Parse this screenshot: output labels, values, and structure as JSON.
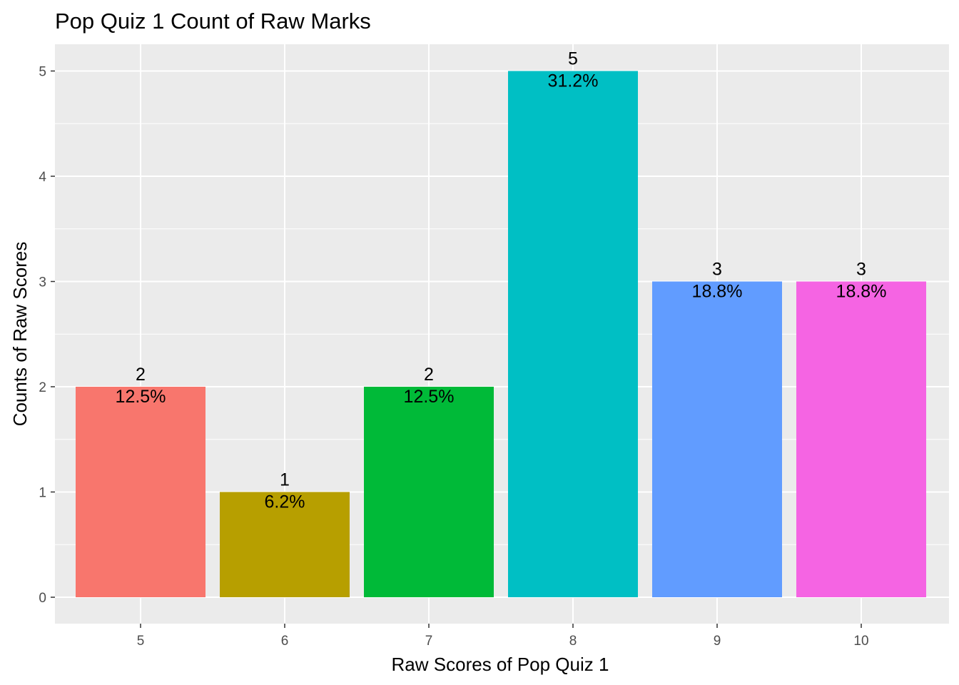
{
  "chart_data": {
    "type": "bar",
    "title": "Pop Quiz 1 Count of Raw Marks",
    "xlabel": "Raw Scores of Pop Quiz 1",
    "ylabel": "Counts of Raw Scores",
    "categories": [
      "5",
      "6",
      "7",
      "8",
      "9",
      "10"
    ],
    "values": [
      2,
      1,
      2,
      5,
      3,
      3
    ],
    "value_labels": [
      "2",
      "1",
      "2",
      "5",
      "3",
      "3"
    ],
    "percent_labels": [
      "12.5%",
      "6.2%",
      "12.5%",
      "31.2%",
      "18.8%",
      "18.8%"
    ],
    "colors": [
      "#F8766D",
      "#B79F00",
      "#00BA38",
      "#00BFC4",
      "#619CFF",
      "#F564E3"
    ],
    "ylim": [
      -0.25,
      5.25
    ],
    "yticks": [
      0,
      1,
      2,
      3,
      4,
      5
    ],
    "grid": true,
    "legend": "none",
    "panel_background": "#EBEBEB",
    "gridline_color": "#FFFFFF"
  }
}
